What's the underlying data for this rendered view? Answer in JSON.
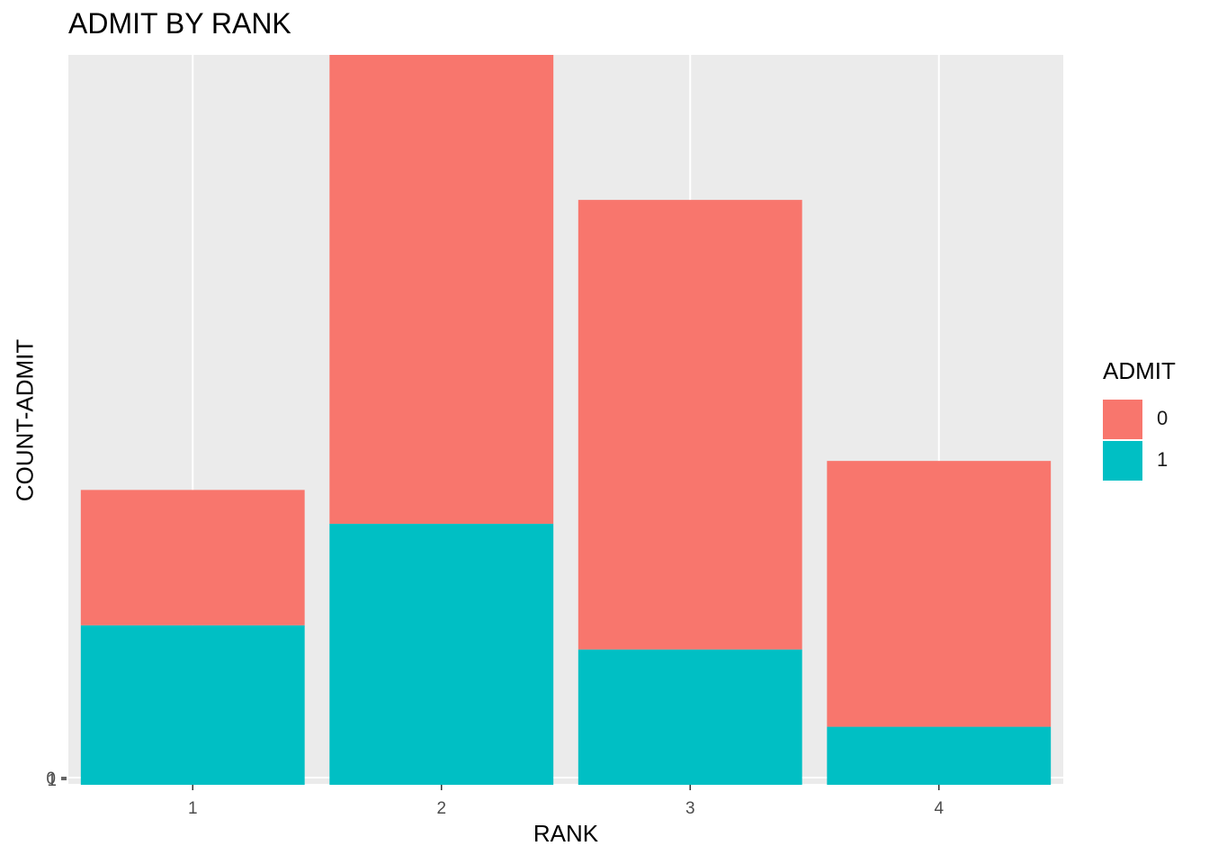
{
  "chart_data": {
    "type": "bar",
    "stacked": true,
    "title": "ADMIT BY RANK",
    "xlabel": "RANK",
    "ylabel": "COUNT-ADMIT",
    "categories": [
      "1",
      "2",
      "3",
      "4"
    ],
    "legend": {
      "title": "ADMIT",
      "position": "right"
    },
    "series": [
      {
        "name": "0",
        "color": "#F8766D",
        "values": [
          28,
          97,
          93,
          55
        ]
      },
      {
        "name": "1",
        "color": "#00BFC4",
        "values": [
          33,
          54,
          28,
          12
        ]
      }
    ],
    "y_tick_labels": [
      "0",
      "1"
    ],
    "ylim": [
      0,
      151
    ],
    "grid": true,
    "panel_background": "#EBEBEB"
  }
}
